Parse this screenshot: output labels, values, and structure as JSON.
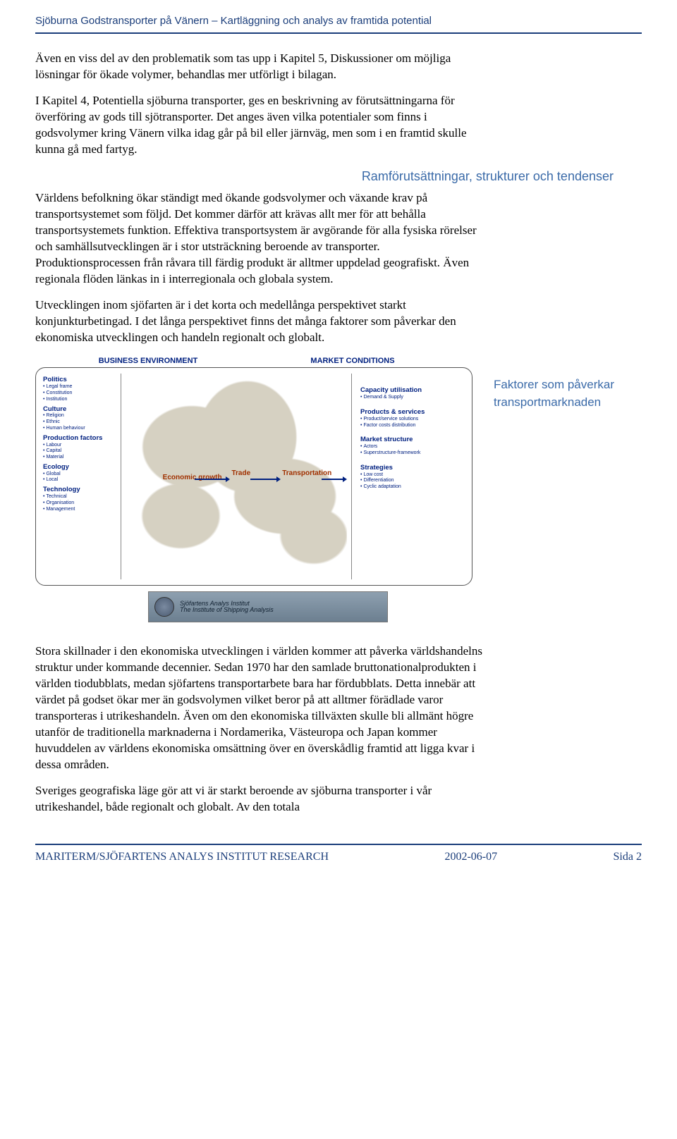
{
  "header": {
    "title": "Sjöburna Godstransporter på Vänern – Kartläggning och analys av framtida potential"
  },
  "paragraphs": {
    "p1": "Även en viss del av den problematik som tas upp i Kapitel 5, Diskussioner om möjliga lösningar för ökade volymer, behandlas mer utförligt i bilagan.",
    "p2": "I Kapitel 4, Potentiella sjöburna transporter, ges en beskrivning av förutsättningarna för överföring av gods till sjötransporter. Det anges även vilka potentialer som finns i godsvolymer kring Vänern vilka idag går på bil eller järnväg, men som i en framtid skulle kunna gå med fartyg.",
    "heading": "Ramförutsättningar, strukturer och tendenser",
    "p3": "Världens befolkning ökar ständigt med ökande godsvolymer och växande krav på transportsystemet som följd. Det kommer därför att krävas allt mer för att behålla transportsystemets funktion. Effektiva transportsystem är avgörande för alla fysiska rörelser och samhällsutvecklingen är i stor utsträckning beroende av transporter. Produktionsprocessen från råvara till färdig produkt är alltmer uppdelad geografiskt. Även regionala flöden länkas in i interregionala och globala system.",
    "p4": "Utvecklingen inom sjöfarten är i det korta och medellånga perspektivet starkt konjunkturbetingad. I det långa perspektivet finns det många faktorer som påverkar den ekonomiska utvecklingen och handeln regionalt och globalt.",
    "p5": "Stora skillnader i den ekonomiska utvecklingen i världen kommer att påverka världshandelns struktur under kommande decennier. Sedan 1970 har den samlade bruttonationalprodukten i världen tiodubblats, medan sjöfartens transportarbete bara har fördubblats. Detta innebär att värdet på godset ökar mer än godsvolymen vilket beror på att alltmer förädlade varor transporteras i utrikeshandeln. Även om den ekonomiska tillväxten skulle bli allmänt högre utanför de traditionella marknaderna i Nordamerika, Västeuropa och Japan kommer huvuddelen av världens ekonomiska omsättning över en överskådlig framtid att ligga kvar i dessa områden.",
    "p6": "Sveriges geografiska läge gör att vi är starkt beroende av sjöburna transporter i vår utrikeshandel, både regionalt och globalt. Av den totala"
  },
  "diagram": {
    "header_left": "BUSINESS ENVIRONMENT",
    "header_right": "MARKET CONDITIONS",
    "caption": "Faktorer som påverkar transportmarknaden",
    "left": [
      {
        "cat": "Politics",
        "subs": [
          "Legal frame",
          "Constitution",
          "Institution"
        ]
      },
      {
        "cat": "Culture",
        "subs": [
          "Religion",
          "Ethnic",
          "Human behaviour"
        ]
      },
      {
        "cat": "Production factors",
        "subs": [
          "Labour",
          "Capital",
          "Material"
        ]
      },
      {
        "cat": "Ecology",
        "subs": [
          "Global",
          "Local"
        ]
      },
      {
        "cat": "Technology",
        "subs": [
          "Technical",
          "Organisation",
          "Management"
        ]
      }
    ],
    "nodes": {
      "econ": "Economic growth",
      "trade": "Trade",
      "transp": "Transportation"
    },
    "right": [
      {
        "cat": "Capacity utilisation",
        "subs": [
          "Demand & Supply"
        ]
      },
      {
        "cat": "Products & services",
        "subs": [
          "Product/service solutions",
          "Factor costs distribution"
        ]
      },
      {
        "cat": "Market structure",
        "subs": [
          "Actors",
          "Superstructure-framework"
        ]
      },
      {
        "cat": "Strategies",
        "subs": [
          "Low cost",
          "Differentiation",
          "Cyclic adaptation"
        ]
      }
    ],
    "logo": {
      "line1": "Sjöfartens Analys Institut",
      "line2": "The Institute of Shipping Analysis"
    }
  },
  "footer": {
    "left": "MARITERM/SJÖFARTENS ANALYS INSTITUT RESEARCH",
    "center": "2002-06-07",
    "right": "Sida 2"
  }
}
